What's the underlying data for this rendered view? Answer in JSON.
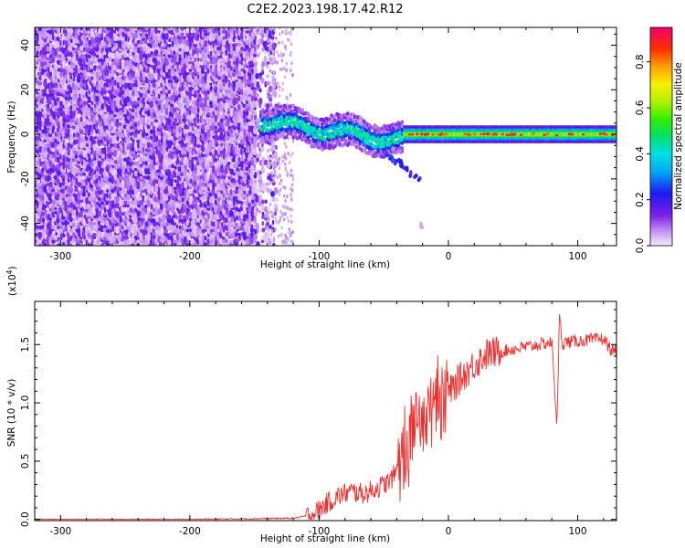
{
  "title": "C2E2.2023.198.17.42.R12",
  "chart_data": [
    {
      "type": "heatmap",
      "xlabel": "Height of straight line (km)",
      "ylabel": "Frequency (Hz)",
      "xlim": [
        -320,
        130
      ],
      "ylim": [
        -50,
        48
      ],
      "x_ticks": [
        -300,
        -200,
        -100,
        0,
        100
      ],
      "y_ticks": [
        -40,
        -20,
        0,
        20,
        40
      ],
      "colorbar": {
        "label": "Normalized spectral amplitude",
        "range": [
          0.0,
          0.95
        ],
        "ticks": [
          "0.0",
          "0.2",
          "0.4",
          "0.6",
          "0.8"
        ]
      },
      "regions": [
        {
          "x_range": [
            -320,
            -135
          ],
          "freq_range": [
            -50,
            48
          ],
          "amplitude": "0.0-0.3 (broadband noise)"
        },
        {
          "x_range": [
            -145,
            -35
          ],
          "freq_center": [
            6,
            -5
          ],
          "amplitude": "0.2-0.5"
        },
        {
          "x_range": [
            -35,
            130
          ],
          "freq_center": 0,
          "amplitude": "0.6-0.9 (narrow tone)"
        }
      ]
    },
    {
      "type": "line",
      "xlabel": "Height of straight line (km)",
      "ylabel": "SNR (10 * v/v)",
      "y_scale_note": "(x10",
      "y_scale_exp": "4",
      "y_scale_close": ")",
      "xlim": [
        -320,
        130
      ],
      "ylim": [
        -0.01,
        1.87
      ],
      "x_ticks": [
        -300,
        -200,
        -100,
        0,
        100
      ],
      "y_ticks": [
        "0.0",
        "0.5",
        "1.0",
        "1.5"
      ],
      "color": "#f03030",
      "series": [
        {
          "x": [
            -320,
            -200,
            -120,
            -105,
            -95,
            -85,
            -75,
            -65,
            -55,
            -45,
            -38,
            -30,
            -25,
            -20,
            -15,
            -10,
            -5,
            0,
            10,
            20,
            30,
            40,
            50,
            60,
            70,
            80,
            84,
            86,
            88,
            90,
            100,
            110,
            120,
            126
          ],
          "values": [
            0.0,
            0.0,
            0.01,
            0.04,
            0.13,
            0.2,
            0.24,
            0.22,
            0.27,
            0.33,
            0.45,
            0.6,
            0.77,
            0.85,
            0.9,
            0.95,
            1.0,
            1.08,
            1.22,
            1.33,
            1.42,
            1.44,
            1.46,
            1.48,
            1.5,
            1.52,
            0.8,
            1.78,
            1.5,
            1.52,
            1.53,
            1.54,
            1.55,
            1.45
          ]
        }
      ]
    }
  ]
}
